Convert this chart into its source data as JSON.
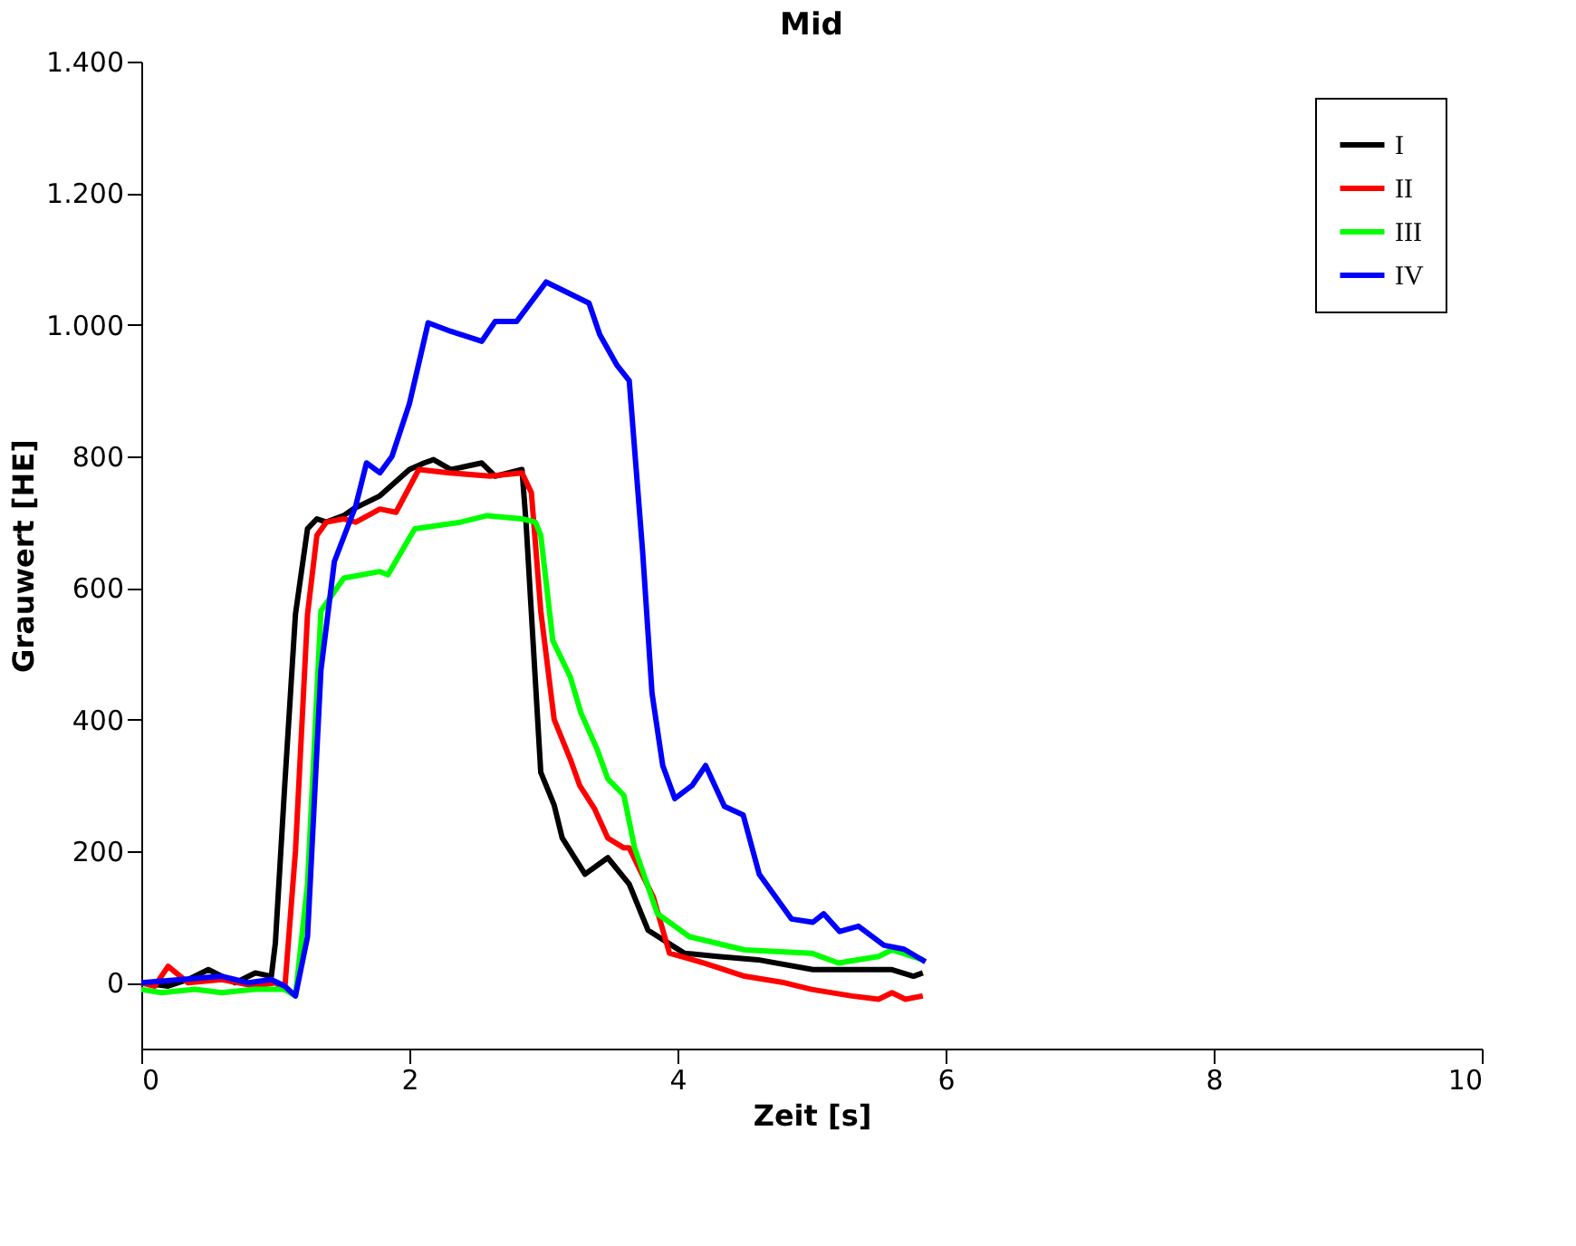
{
  "chart_data": {
    "type": "line",
    "title": "Mid",
    "xlabel": "Zeit [s]",
    "ylabel": "Grauwert [HE]",
    "xlim": [
      0,
      10
    ],
    "xticks": [
      0,
      2,
      4,
      6,
      8,
      10
    ],
    "ylim": [
      -100,
      1400
    ],
    "yticks": [
      0,
      200,
      400,
      600,
      800,
      {
        "value": 1000,
        "label": "1.000"
      },
      {
        "value": 1200,
        "label": "1.200"
      },
      {
        "value": 1400,
        "label": "1.400"
      }
    ],
    "legend": "top right",
    "grid": false,
    "line_style": "solid",
    "marker": "none",
    "series": [
      {
        "name": "I",
        "color": "#000000",
        "x": [
          0,
          0.2,
          0.35,
          0.5,
          0.7,
          0.85,
          0.97,
          1.0,
          1.07,
          1.15,
          1.24,
          1.31,
          1.38,
          1.51,
          1.58,
          1.78,
          2.0,
          2.11,
          2.18,
          2.31,
          2.54,
          2.64,
          2.84,
          2.87,
          2.98,
          3.08,
          3.14,
          3.31,
          3.48,
          3.64,
          3.78,
          4.05,
          4.3,
          4.6,
          5.01,
          5.3,
          5.6,
          5.76,
          5.83
        ],
        "values": [
          0,
          -5,
          5,
          20,
          0,
          15,
          10,
          60,
          300,
          560,
          690,
          705,
          700,
          710,
          720,
          740,
          780,
          790,
          795,
          780,
          790,
          770,
          780,
          700,
          320,
          270,
          220,
          165,
          190,
          150,
          80,
          45,
          40,
          35,
          20,
          20,
          20,
          10,
          15
        ]
      },
      {
        "name": "II",
        "color": "#ff0000",
        "x": [
          0,
          0.1,
          0.2,
          0.35,
          0.6,
          0.85,
          1.0,
          1.07,
          1.15,
          1.24,
          1.31,
          1.38,
          1.51,
          1.6,
          1.78,
          1.9,
          2.07,
          2.3,
          2.6,
          2.84,
          2.91,
          2.98,
          3.08,
          3.2,
          3.27,
          3.38,
          3.48,
          3.6,
          3.64,
          3.82,
          3.94,
          4.2,
          4.5,
          4.8,
          5.0,
          5.3,
          5.5,
          5.6,
          5.7,
          5.83
        ],
        "values": [
          0,
          -5,
          25,
          0,
          5,
          -5,
          0,
          -10,
          200,
          560,
          680,
          700,
          705,
          700,
          720,
          715,
          780,
          775,
          770,
          775,
          745,
          565,
          400,
          340,
          300,
          265,
          220,
          205,
          205,
          130,
          45,
          30,
          10,
          0,
          -10,
          -20,
          -25,
          -15,
          -25,
          -20
        ]
      },
      {
        "name": "III",
        "color": "#00ff00",
        "x": [
          0,
          0.15,
          0.4,
          0.6,
          0.85,
          1.07,
          1.15,
          1.24,
          1.34,
          1.51,
          1.78,
          1.84,
          2.04,
          2.38,
          2.58,
          2.84,
          2.94,
          2.98,
          3.07,
          3.2,
          3.28,
          3.4,
          3.48,
          3.6,
          3.68,
          3.85,
          4.09,
          4.5,
          5.0,
          5.2,
          5.5,
          5.6,
          5.83
        ],
        "values": [
          -10,
          -15,
          -10,
          -15,
          -10,
          -10,
          -20,
          150,
          565,
          615,
          625,
          620,
          690,
          700,
          710,
          705,
          700,
          680,
          520,
          465,
          410,
          355,
          310,
          285,
          205,
          105,
          70,
          50,
          45,
          30,
          40,
          50,
          35
        ]
      },
      {
        "name": "IV",
        "color": "#0000ff",
        "x": [
          0,
          0.3,
          0.6,
          0.8,
          0.97,
          1.07,
          1.15,
          1.24,
          1.34,
          1.44,
          1.6,
          1.68,
          1.78,
          1.87,
          2.0,
          2.08,
          2.14,
          2.31,
          2.54,
          2.64,
          2.8,
          3.02,
          3.34,
          3.42,
          3.55,
          3.64,
          3.74,
          3.81,
          3.89,
          3.98,
          4.11,
          4.21,
          4.35,
          4.49,
          4.61,
          4.85,
          5.01,
          5.09,
          5.21,
          5.35,
          5.54,
          5.69,
          5.85
        ],
        "values": [
          0,
          5,
          10,
          0,
          5,
          -5,
          -20,
          70,
          475,
          640,
          725,
          790,
          775,
          800,
          880,
          950,
          1003,
          990,
          975,
          1005,
          1005,
          1065,
          1033,
          985,
          938,
          915,
          655,
          440,
          330,
          280,
          300,
          330,
          268,
          255,
          165,
          97,
          92,
          105,
          78,
          86,
          57,
          51,
          32
        ]
      }
    ]
  }
}
